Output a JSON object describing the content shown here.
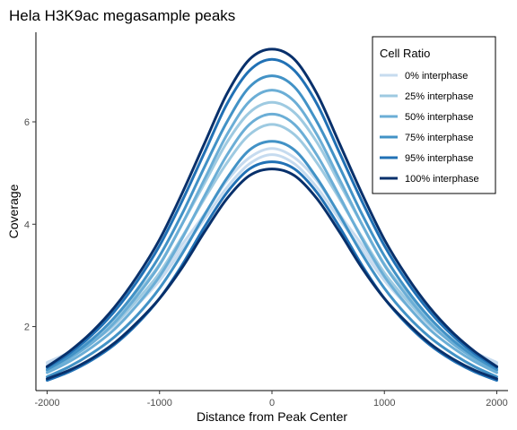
{
  "chart_data": {
    "type": "line",
    "title": "Hela H3K9ac megasample peaks",
    "xlabel": "Distance from Peak Center",
    "ylabel": "Coverage",
    "xlim": [
      -2100,
      2100
    ],
    "ylim": [
      0.75,
      7.75
    ],
    "xticks": [
      -2000,
      -1000,
      0,
      1000,
      2000
    ],
    "xtick_labels": [
      "-2000",
      "-1000",
      "0",
      "1000",
      "2000"
    ],
    "yticks": [
      2,
      4,
      6
    ],
    "ytick_labels": [
      "2",
      "4",
      "6"
    ],
    "grid": false,
    "legend": {
      "title": "Cell Ratio",
      "placement": "top-right"
    },
    "x": [
      -2000,
      -1800,
      -1600,
      -1400,
      -1200,
      -1000,
      -800,
      -600,
      -400,
      -200,
      0,
      200,
      400,
      600,
      800,
      1000,
      1200,
      1400,
      1600,
      1800,
      2000
    ],
    "series": [
      {
        "name": "0% interphase",
        "color": "#c6dbef",
        "replicates": [
          [
            1.3,
            1.5,
            1.75,
            2.07,
            2.5,
            2.98,
            3.6,
            4.2,
            4.85,
            5.3,
            5.48,
            5.3,
            4.85,
            4.2,
            3.6,
            2.98,
            2.5,
            2.07,
            1.75,
            1.5,
            1.3
          ],
          [
            1.27,
            1.46,
            1.7,
            2.02,
            2.42,
            2.9,
            3.5,
            4.1,
            4.72,
            5.18,
            5.36,
            5.18,
            4.72,
            4.1,
            3.5,
            2.9,
            2.42,
            2.02,
            1.7,
            1.46,
            1.27
          ]
        ]
      },
      {
        "name": "25% interphase",
        "color": "#9ecae1",
        "replicates": [
          [
            1.2,
            1.42,
            1.7,
            2.05,
            2.52,
            3.05,
            3.75,
            4.5,
            5.2,
            5.75,
            5.95,
            5.75,
            5.2,
            4.5,
            3.75,
            3.05,
            2.52,
            2.05,
            1.7,
            1.42,
            1.2
          ],
          [
            1.22,
            1.46,
            1.76,
            2.15,
            2.65,
            3.22,
            4.0,
            4.8,
            5.6,
            6.18,
            6.38,
            6.18,
            5.6,
            4.8,
            4.0,
            3.22,
            2.65,
            2.15,
            1.76,
            1.46,
            1.22
          ]
        ]
      },
      {
        "name": "50% interphase",
        "color": "#6baed6",
        "replicates": [
          [
            1.1,
            1.32,
            1.6,
            1.95,
            2.42,
            2.98,
            3.72,
            4.55,
            5.35,
            5.95,
            6.15,
            5.95,
            5.35,
            4.55,
            3.72,
            2.98,
            2.42,
            1.95,
            1.6,
            1.32,
            1.1
          ],
          [
            1.14,
            1.38,
            1.68,
            2.08,
            2.6,
            3.2,
            4.0,
            4.88,
            5.75,
            6.4,
            6.62,
            6.4,
            5.75,
            4.88,
            4.0,
            3.2,
            2.6,
            2.08,
            1.68,
            1.38,
            1.14
          ]
        ]
      },
      {
        "name": "75% interphase",
        "color": "#4292c6",
        "replicates": [
          [
            1.02,
            1.22,
            1.48,
            1.8,
            2.22,
            2.75,
            3.42,
            4.18,
            4.9,
            5.45,
            5.62,
            5.45,
            4.9,
            4.18,
            3.42,
            2.75,
            2.22,
            1.8,
            1.48,
            1.22,
            1.02
          ],
          [
            1.16,
            1.42,
            1.75,
            2.18,
            2.72,
            3.38,
            4.2,
            5.12,
            6.0,
            6.68,
            6.9,
            6.68,
            6.0,
            5.12,
            4.2,
            3.38,
            2.72,
            2.18,
            1.75,
            1.42,
            1.16
          ]
        ]
      },
      {
        "name": "95% interphase",
        "color": "#2171b5",
        "replicates": [
          [
            0.95,
            1.12,
            1.35,
            1.65,
            2.05,
            2.55,
            3.2,
            3.95,
            4.62,
            5.08,
            5.22,
            5.08,
            4.62,
            3.95,
            3.2,
            2.55,
            2.05,
            1.65,
            1.35,
            1.12,
            0.95
          ],
          [
            1.2,
            1.48,
            1.84,
            2.3,
            2.88,
            3.58,
            4.45,
            5.4,
            6.35,
            7.0,
            7.22,
            7.0,
            6.35,
            5.4,
            4.45,
            3.58,
            2.88,
            2.3,
            1.84,
            1.48,
            1.2
          ]
        ]
      },
      {
        "name": "100% interphase",
        "color": "#08306b",
        "replicates": [
          [
            0.98,
            1.15,
            1.38,
            1.68,
            2.08,
            2.55,
            3.15,
            3.85,
            4.5,
            4.95,
            5.08,
            4.95,
            4.5,
            3.85,
            3.15,
            2.55,
            2.08,
            1.68,
            1.38,
            1.15,
            0.98
          ],
          [
            1.22,
            1.52,
            1.9,
            2.38,
            2.98,
            3.7,
            4.6,
            5.58,
            6.55,
            7.22,
            7.42,
            7.22,
            6.55,
            5.58,
            4.6,
            3.7,
            2.98,
            2.38,
            1.9,
            1.52,
            1.22
          ]
        ]
      }
    ]
  }
}
